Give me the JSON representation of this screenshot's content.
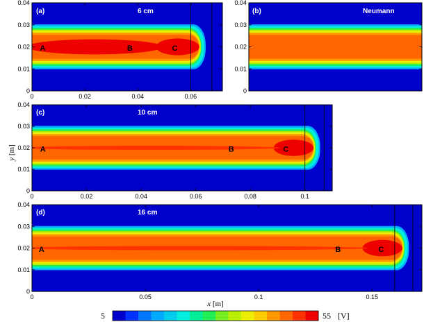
{
  "chart_data": [
    {
      "type": "heatmap",
      "panel_label": "(a)",
      "annotation": "6 cm",
      "xlim": [
        0,
        0.072
      ],
      "ylim": [
        0,
        0.04
      ],
      "xticks": [
        "0",
        "0.02",
        "0.04",
        "0.06"
      ],
      "xtick_values": [
        0,
        0.02,
        0.04,
        0.06
      ],
      "yticks": [
        "0",
        "0.01",
        "0.02",
        "0.03",
        "0.04"
      ],
      "band_center": 0.02,
      "end_x": 0.062,
      "hot_tip": true,
      "points": [
        {
          "label": "A",
          "x": 0.003,
          "y": 0.0195
        },
        {
          "label": "B",
          "x": 0.037,
          "y": 0.0195
        },
        {
          "label": "C",
          "x": 0.054,
          "y": 0.0195
        }
      ],
      "vlines": [
        0.06,
        0.068
      ]
    },
    {
      "type": "heatmap",
      "panel_label": "(b)",
      "annotation": "Neumann",
      "ylim": [
        0,
        0.04
      ],
      "yticks": [
        "0",
        "0.01",
        "0.02",
        "0.03",
        "0.04"
      ],
      "band_center": 0.02
    },
    {
      "type": "heatmap",
      "panel_label": "(c)",
      "annotation": "10 cm",
      "xlim": [
        0,
        0.11
      ],
      "ylim": [
        0,
        0.04
      ],
      "xticks": [
        "0",
        "0.02",
        "0.04",
        "0.06",
        "0.08",
        "0.1"
      ],
      "xtick_values": [
        0,
        0.02,
        0.04,
        0.06,
        0.08,
        0.1
      ],
      "yticks": [
        "0",
        "0.01",
        "0.02",
        "0.03",
        "0.04"
      ],
      "band_center": 0.02,
      "end_x": 0.102,
      "hot_tip": true,
      "points": [
        {
          "label": "A",
          "x": 0.003,
          "y": 0.0195
        },
        {
          "label": "B",
          "x": 0.073,
          "y": 0.0195
        },
        {
          "label": "C",
          "x": 0.093,
          "y": 0.0195
        }
      ],
      "vlines": [
        0.1,
        0.107
      ]
    },
    {
      "type": "heatmap",
      "panel_label": "(d)",
      "annotation": "16 cm",
      "xlim": [
        0,
        0.172
      ],
      "ylim": [
        0,
        0.04
      ],
      "xticks": [
        "0",
        "0.05",
        "0.1",
        "0.15"
      ],
      "xtick_values": [
        0,
        0.05,
        0.1,
        0.15
      ],
      "yticks": [
        "0",
        "0.01",
        "0.02",
        "0.03",
        "0.04"
      ],
      "band_center": 0.02,
      "end_x": 0.162,
      "hot_tip": true,
      "points": [
        {
          "label": "A",
          "x": 0.003,
          "y": 0.0195
        },
        {
          "label": "B",
          "x": 0.135,
          "y": 0.0195
        },
        {
          "label": "C",
          "x": 0.154,
          "y": 0.0195
        }
      ],
      "vlines": [
        0.16,
        0.168
      ]
    }
  ],
  "axes": {
    "xlabel_var": "x",
    "xlabel_unit": "[m]",
    "ylabel_var": "y",
    "ylabel_unit": "[m]"
  },
  "colorbar": {
    "min_label": "5",
    "max_label": "55",
    "unit": "[V]",
    "colors": [
      "#0000cc",
      "#0033ff",
      "#0077ff",
      "#00aaff",
      "#00ccee",
      "#00eedd",
      "#00ee99",
      "#22ee55",
      "#77ee22",
      "#bbee00",
      "#eeee00",
      "#ffcc00",
      "#ff9900",
      "#ff6600",
      "#ff3300",
      "#ee0000"
    ]
  }
}
